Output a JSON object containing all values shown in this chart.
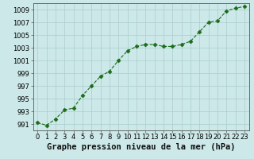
{
  "x": [
    0,
    1,
    2,
    3,
    4,
    5,
    6,
    7,
    8,
    9,
    10,
    11,
    12,
    13,
    14,
    15,
    16,
    17,
    18,
    19,
    20,
    21,
    22,
    23
  ],
  "y": [
    991.2,
    990.8,
    991.8,
    993.2,
    993.5,
    995.5,
    997.0,
    998.5,
    999.3,
    1001.0,
    1002.5,
    1003.2,
    1003.5,
    1003.5,
    1003.2,
    1003.2,
    1003.5,
    1004.0,
    1005.5,
    1007.0,
    1007.2,
    1008.8,
    1009.2,
    1009.5
  ],
  "xlabel": "Graphe pression niveau de la mer (hPa)",
  "ylim": [
    990,
    1010
  ],
  "xlim": [
    -0.5,
    23.5
  ],
  "yticks": [
    991,
    993,
    995,
    997,
    999,
    1001,
    1003,
    1005,
    1007,
    1009
  ],
  "xticks": [
    0,
    1,
    2,
    3,
    4,
    5,
    6,
    7,
    8,
    9,
    10,
    11,
    12,
    13,
    14,
    15,
    16,
    17,
    18,
    19,
    20,
    21,
    22,
    23
  ],
  "line_color": "#1a6b1a",
  "marker_color": "#1a6b1a",
  "bg_color": "#cce8e8",
  "grid_color": "#aacece",
  "axes_edge_color": "#555555",
  "xlabel_fontsize": 7.5,
  "tick_fontsize": 6.0
}
